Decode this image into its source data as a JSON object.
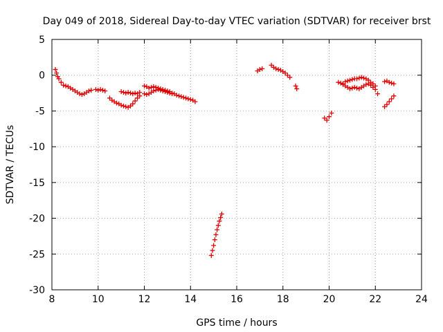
{
  "chart_data": {
    "type": "scatter",
    "title": "Day 049 of 2018, Sidereal Day-to-day VTEC variation (SDTVAR) for receiver brst",
    "xlabel": "GPS time / hours",
    "ylabel": "SDTVAR / TECUs",
    "xlim": [
      8,
      24
    ],
    "ylim": [
      -30,
      5
    ],
    "xticks": [
      8,
      10,
      12,
      14,
      16,
      18,
      20,
      22,
      24
    ],
    "xtick_labels": [
      "8",
      "10",
      "12",
      "14",
      "16",
      "18",
      "20",
      "22",
      "24"
    ],
    "yticks": [
      5,
      0,
      -5,
      -10,
      -15,
      -20,
      -25,
      -30
    ],
    "ytick_labels": [
      "5",
      "0",
      "-5",
      "-10",
      "-15",
      "-20",
      "-25",
      "-30"
    ],
    "grid": true,
    "marker": "plus",
    "color": "#e00000",
    "series": [
      {
        "name": "s1",
        "x": [
          8.15,
          8.2,
          8.25,
          8.3,
          8.4,
          8.5,
          8.6,
          8.7,
          8.8,
          8.9,
          9.0,
          9.1,
          9.2,
          9.3,
          9.4,
          9.5,
          9.6,
          9.7
        ],
        "y": [
          0.8,
          0.3,
          -0.2,
          -0.5,
          -1.0,
          -1.4,
          -1.5,
          -1.6,
          -1.8,
          -2.0,
          -2.2,
          -2.4,
          -2.6,
          -2.7,
          -2.6,
          -2.4,
          -2.2,
          -2.1
        ]
      },
      {
        "name": "s2",
        "x": [
          9.9,
          10.0,
          10.1,
          10.2,
          10.3
        ],
        "y": [
          -2.0,
          -2.1,
          -2.0,
          -2.1,
          -2.2
        ]
      },
      {
        "name": "s3",
        "x": [
          10.5,
          10.6,
          10.7,
          10.8,
          10.9,
          11.0,
          11.1,
          11.2,
          11.3,
          11.4,
          11.5,
          11.6,
          11.7,
          11.8
        ],
        "y": [
          -3.2,
          -3.5,
          -3.7,
          -3.9,
          -4.0,
          -4.2,
          -4.3,
          -4.4,
          -4.5,
          -4.3,
          -4.0,
          -3.6,
          -3.2,
          -2.9
        ]
      },
      {
        "name": "s4",
        "x": [
          11.0,
          11.1,
          11.2,
          11.3,
          11.4,
          11.5,
          11.6,
          11.7,
          11.8
        ],
        "y": [
          -2.3,
          -2.4,
          -2.5,
          -2.4,
          -2.5,
          -2.6,
          -2.5,
          -2.6,
          -2.4
        ]
      },
      {
        "name": "s5",
        "x": [
          12.0,
          12.1,
          12.2,
          12.3,
          12.4,
          12.5,
          12.6,
          12.7,
          12.8,
          12.9,
          13.0,
          13.1,
          13.2,
          13.3,
          13.4,
          13.5,
          13.6,
          13.7,
          13.8,
          13.9,
          14.0,
          14.1,
          14.2
        ],
        "y": [
          -1.5,
          -1.6,
          -1.8,
          -1.7,
          -1.6,
          -1.7,
          -1.8,
          -1.9,
          -2.0,
          -2.1,
          -2.2,
          -2.3,
          -2.5,
          -2.6,
          -2.8,
          -2.9,
          -3.0,
          -3.1,
          -3.2,
          -3.3,
          -3.4,
          -3.5,
          -3.7
        ]
      },
      {
        "name": "s6",
        "x": [
          12.0,
          12.1,
          12.2,
          12.3,
          12.4,
          12.5,
          12.6,
          12.7,
          12.8,
          12.9,
          13.0,
          13.1,
          13.2
        ],
        "y": [
          -2.6,
          -2.7,
          -2.6,
          -2.4,
          -2.2,
          -2.1,
          -2.0,
          -2.1,
          -2.2,
          -2.3,
          -2.4,
          -2.5,
          -2.6
        ]
      },
      {
        "name": "s7",
        "x": [
          14.9,
          14.95,
          15.0,
          15.05,
          15.1,
          15.15,
          15.2,
          15.25,
          15.3,
          15.35
        ],
        "y": [
          -25.2,
          -24.5,
          -23.8,
          -23.0,
          -22.3,
          -21.6,
          -21.0,
          -20.4,
          -19.9,
          -19.4
        ]
      },
      {
        "name": "s8",
        "x": [
          16.9,
          17.0,
          17.1
        ],
        "y": [
          0.6,
          0.8,
          0.9
        ]
      },
      {
        "name": "s9",
        "x": [
          17.5,
          17.6,
          17.7,
          17.8,
          17.9,
          18.0,
          18.1,
          18.2,
          18.3
        ],
        "y": [
          1.4,
          1.1,
          0.9,
          0.8,
          0.7,
          0.5,
          0.3,
          0.0,
          -0.3
        ]
      },
      {
        "name": "s10",
        "x": [
          18.55,
          18.6
        ],
        "y": [
          -1.5,
          -1.9
        ]
      },
      {
        "name": "s11",
        "x": [
          19.8,
          19.9,
          20.0,
          20.1
        ],
        "y": [
          -6.0,
          -6.3,
          -5.8,
          -5.3
        ]
      },
      {
        "name": "s12",
        "x": [
          20.4,
          20.5,
          20.6,
          20.7,
          20.8,
          20.9,
          21.0,
          21.1,
          21.2,
          21.3,
          21.4,
          21.5,
          21.6,
          21.7,
          21.8,
          21.9,
          22.0,
          22.1
        ],
        "y": [
          -1.0,
          -1.1,
          -1.3,
          -1.5,
          -1.7,
          -1.9,
          -1.8,
          -1.7,
          -1.8,
          -1.9,
          -1.7,
          -1.5,
          -1.3,
          -1.2,
          -1.4,
          -1.7,
          -2.0,
          -2.6
        ]
      },
      {
        "name": "s13",
        "x": [
          20.6,
          20.7,
          20.8,
          20.9,
          21.0,
          21.1,
          21.2,
          21.3,
          21.4,
          21.5,
          21.6,
          21.7,
          21.8,
          21.9,
          22.0
        ],
        "y": [
          -1.2,
          -0.9,
          -0.8,
          -0.7,
          -0.6,
          -0.5,
          -0.5,
          -0.4,
          -0.3,
          -0.4,
          -0.5,
          -0.7,
          -1.0,
          -1.2,
          -1.5
        ]
      },
      {
        "name": "s14",
        "x": [
          22.4,
          22.5,
          22.6,
          22.7,
          22.8
        ],
        "y": [
          -4.4,
          -4.1,
          -3.7,
          -3.3,
          -2.9
        ]
      },
      {
        "name": "s15",
        "x": [
          22.4,
          22.5,
          22.6,
          22.7,
          22.8
        ],
        "y": [
          -0.9,
          -0.8,
          -1.0,
          -1.1,
          -1.2
        ]
      }
    ]
  }
}
